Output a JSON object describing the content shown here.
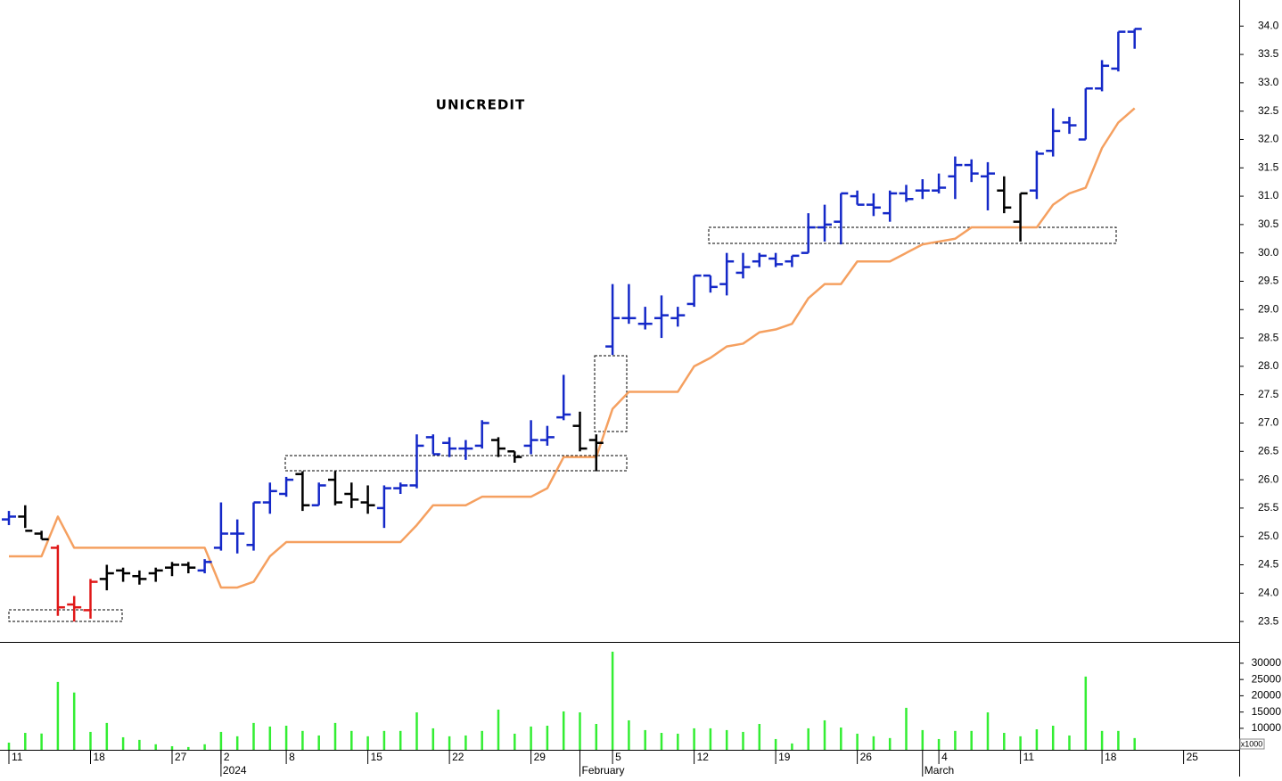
{
  "chart_data": {
    "type": "ohlc",
    "title": "UNICREDIT",
    "categories": [
      "11",
      null,
      null,
      null,
      null,
      "18",
      null,
      null,
      null,
      null,
      "27",
      null,
      null,
      "2",
      null,
      null,
      null,
      "8",
      null,
      null,
      null,
      null,
      "15",
      null,
      null,
      null,
      null,
      "22",
      null,
      null,
      null,
      null,
      "29",
      null,
      null,
      null,
      null,
      "5",
      null,
      null,
      null,
      null,
      "12",
      null,
      null,
      null,
      null,
      "19",
      null,
      null,
      null,
      null,
      "26",
      null,
      null,
      null,
      null,
      "4",
      null,
      null,
      null,
      null,
      "11",
      null,
      null,
      null,
      null,
      "18",
      null,
      null,
      null,
      null,
      "25",
      null,
      null,
      null
    ],
    "periods": [
      {
        "label": "2024",
        "category": 13
      },
      {
        "label": "February",
        "category": 35
      },
      {
        "label": "March",
        "category": 56
      }
    ],
    "open": [
      25.3,
      25.35,
      25.05,
      24.8,
      23.8,
      23.7,
      24.25,
      24.4,
      24.3,
      24.35,
      24.45,
      24.5,
      24.4,
      24.8,
      25.05,
      24.85,
      25.6,
      25.75,
      26.1,
      25.55,
      26.0,
      25.75,
      25.6,
      25.5,
      25.85,
      25.9,
      26.75,
      26.65,
      26.55,
      26.6,
      26.7,
      26.5,
      26.6,
      26.7,
      27.1,
      26.95,
      26.7,
      28.35,
      28.85,
      28.75,
      28.85,
      28.85,
      29.1,
      29.6,
      29.45,
      29.65,
      29.85,
      29.9,
      29.85,
      30.0,
      30.45,
      30.55,
      31.0,
      30.85,
      30.7,
      31.05,
      31.1,
      31.1,
      31.35,
      31.55,
      31.35,
      31.1,
      30.55,
      31.1,
      31.8,
      32.3,
      32.0,
      32.9,
      33.25,
      33.9,
      null,
      null,
      null,
      null,
      null,
      null
    ],
    "high": [
      25.45,
      25.55,
      25.1,
      24.85,
      23.95,
      24.25,
      24.5,
      24.45,
      24.4,
      24.45,
      24.55,
      24.55,
      24.6,
      25.6,
      25.3,
      25.6,
      25.95,
      26.05,
      26.15,
      25.95,
      26.15,
      25.95,
      25.9,
      25.9,
      25.95,
      26.8,
      26.8,
      26.75,
      26.7,
      27.05,
      26.75,
      26.5,
      27.05,
      26.95,
      27.85,
      27.2,
      26.8,
      29.45,
      29.45,
      29.05,
      29.25,
      29.05,
      29.6,
      29.6,
      30.0,
      30.0,
      30.0,
      30.0,
      29.95,
      30.7,
      30.85,
      31.05,
      31.1,
      31.05,
      31.1,
      31.2,
      31.3,
      31.4,
      31.7,
      31.65,
      31.6,
      31.35,
      31.05,
      31.8,
      32.55,
      32.4,
      32.9,
      33.4,
      33.9,
      33.95,
      null,
      null,
      null,
      null,
      null,
      null
    ],
    "low": [
      25.2,
      25.15,
      24.95,
      23.6,
      23.5,
      23.55,
      24.05,
      24.2,
      24.15,
      24.2,
      24.3,
      24.35,
      24.35,
      24.75,
      24.7,
      24.75,
      25.4,
      25.7,
      25.45,
      25.55,
      25.55,
      25.5,
      25.4,
      25.15,
      25.75,
      25.85,
      26.45,
      26.4,
      26.35,
      26.55,
      26.4,
      26.3,
      26.45,
      26.6,
      27.05,
      26.5,
      26.15,
      28.2,
      28.75,
      28.65,
      28.5,
      28.7,
      29.05,
      29.3,
      29.25,
      29.55,
      29.75,
      29.75,
      29.75,
      30.0,
      30.2,
      30.15,
      30.85,
      30.65,
      30.55,
      30.9,
      30.95,
      31.05,
      30.95,
      31.25,
      30.75,
      30.7,
      30.2,
      30.95,
      31.7,
      32.1,
      32.0,
      32.85,
      33.2,
      33.6,
      null,
      null,
      null,
      null,
      null,
      null
    ],
    "close": [
      25.35,
      25.1,
      24.95,
      23.75,
      23.75,
      24.2,
      24.35,
      24.35,
      24.25,
      24.4,
      24.5,
      24.45,
      24.55,
      25.05,
      25.05,
      25.6,
      25.8,
      26.0,
      25.55,
      25.9,
      25.6,
      25.65,
      25.55,
      25.85,
      25.9,
      26.6,
      26.45,
      26.55,
      26.55,
      27.0,
      26.55,
      26.4,
      26.7,
      26.75,
      27.15,
      26.55,
      26.65,
      28.85,
      28.85,
      28.75,
      28.9,
      28.9,
      29.6,
      29.4,
      29.85,
      29.75,
      29.95,
      29.8,
      29.95,
      30.45,
      30.5,
      31.05,
      30.85,
      30.8,
      31.05,
      30.95,
      31.1,
      31.15,
      31.55,
      31.4,
      31.4,
      30.8,
      31.05,
      31.75,
      32.15,
      32.25,
      32.9,
      33.3,
      33.9,
      33.95,
      null,
      null,
      null,
      null,
      null,
      null
    ],
    "colors": [
      "#1428c8",
      "#000000",
      "#000000",
      "#e01818",
      "#e01818",
      "#e01818",
      "#000000",
      "#000000",
      "#000000",
      "#000000",
      "#000000",
      "#000000",
      "#1428c8",
      "#1428c8",
      "#1428c8",
      "#1428c8",
      "#1428c8",
      "#1428c8",
      "#000000",
      "#1428c8",
      "#000000",
      "#000000",
      "#000000",
      "#1428c8",
      "#1428c8",
      "#1428c8",
      "#1428c8",
      "#1428c8",
      "#1428c8",
      "#1428c8",
      "#000000",
      "#000000",
      "#1428c8",
      "#1428c8",
      "#1428c8",
      "#000000",
      "#000000",
      "#1428c8",
      "#1428c8",
      "#1428c8",
      "#1428c8",
      "#1428c8",
      "#1428c8",
      "#1428c8",
      "#1428c8",
      "#1428c8",
      "#1428c8",
      "#1428c8",
      "#1428c8",
      "#1428c8",
      "#1428c8",
      "#1428c8",
      "#1428c8",
      "#1428c8",
      "#1428c8",
      "#1428c8",
      "#1428c8",
      "#1428c8",
      "#1428c8",
      "#1428c8",
      "#1428c8",
      "#000000",
      "#000000",
      "#1428c8",
      "#1428c8",
      "#1428c8",
      "#1428c8",
      "#1428c8",
      "#1428c8",
      "#1428c8",
      null,
      null,
      null,
      null,
      null,
      null
    ],
    "stop_line": {
      "color": "#f5a060",
      "values": [
        24.65,
        24.65,
        24.65,
        25.35,
        24.8,
        24.8,
        24.8,
        24.8,
        24.8,
        24.8,
        24.8,
        24.8,
        24.8,
        24.1,
        24.1,
        24.2,
        24.65,
        24.9,
        24.9,
        24.9,
        24.9,
        24.9,
        24.9,
        24.9,
        24.9,
        25.2,
        25.55,
        25.55,
        25.55,
        25.7,
        25.7,
        25.7,
        25.7,
        25.85,
        26.4,
        26.4,
        26.4,
        27.25,
        27.55,
        27.55,
        27.55,
        27.55,
        28.0,
        28.15,
        28.35,
        28.4,
        28.6,
        28.65,
        28.75,
        29.2,
        29.45,
        29.45,
        29.85,
        29.85,
        29.85,
        30.0,
        30.15,
        30.2,
        30.25,
        30.45,
        30.45,
        30.45,
        30.45,
        30.45,
        30.85,
        31.05,
        31.15,
        31.85,
        32.3,
        32.55,
        null,
        null,
        null,
        null,
        null,
        null
      ]
    },
    "ylim": [
      23.14,
      34.46
    ],
    "yticks": [
      {
        "value": 23.5,
        "label": "23.5"
      },
      {
        "value": 24,
        "label": "24.0"
      },
      {
        "value": 24.5,
        "label": "24.5"
      },
      {
        "value": 25,
        "label": "25.0"
      },
      {
        "value": 25.5,
        "label": "25.5"
      },
      {
        "value": 26,
        "label": "26.0"
      },
      {
        "value": 26.5,
        "label": "26.5"
      },
      {
        "value": 27,
        "label": "27.0"
      },
      {
        "value": 27.5,
        "label": "27.5"
      },
      {
        "value": 28,
        "label": "28.0"
      },
      {
        "value": 28.5,
        "label": "28.5"
      },
      {
        "value": 29,
        "label": "29.0"
      },
      {
        "value": 29.5,
        "label": "29.5"
      },
      {
        "value": 30,
        "label": "30.0"
      },
      {
        "value": 30.5,
        "label": "30.5"
      },
      {
        "value": 31,
        "label": "31.0"
      },
      {
        "value": 31.5,
        "label": "31.5"
      },
      {
        "value": 32,
        "label": "32.0"
      },
      {
        "value": 32.5,
        "label": "32.5"
      },
      {
        "value": 33,
        "label": "33.0"
      },
      {
        "value": 33.5,
        "label": "33.5"
      },
      {
        "value": 34,
        "label": "34.0"
      }
    ],
    "volume": {
      "type": "bar",
      "color": "#33ee33",
      "unit_label": "x1000",
      "values": [
        5600,
        8600,
        8400,
        24250,
        21000,
        8900,
        11650,
        7250,
        6450,
        5100,
        4500,
        4250,
        5100,
        8900,
        7550,
        11650,
        10550,
        10800,
        9200,
        7800,
        11650,
        9200,
        7550,
        9200,
        9200,
        14900,
        10000,
        7550,
        7800,
        9200,
        15750,
        8350,
        10550,
        10800,
        15200,
        14900,
        11350,
        33550,
        12450,
        9450,
        8600,
        8350,
        10000,
        10000,
        9450,
        8900,
        11350,
        6700,
        5350,
        10000,
        12450,
        10250,
        8350,
        7550,
        7000,
        16300,
        9450,
        6700,
        9200,
        9200,
        14900,
        8600,
        7550,
        9700,
        10800,
        7800,
        25900,
        9200,
        9200,
        7000,
        null,
        null,
        null,
        null,
        null,
        null
      ],
      "ylim": [
        3400,
        36000
      ],
      "yticks": [
        10000,
        15000,
        20000,
        25000,
        30000
      ]
    }
  }
}
